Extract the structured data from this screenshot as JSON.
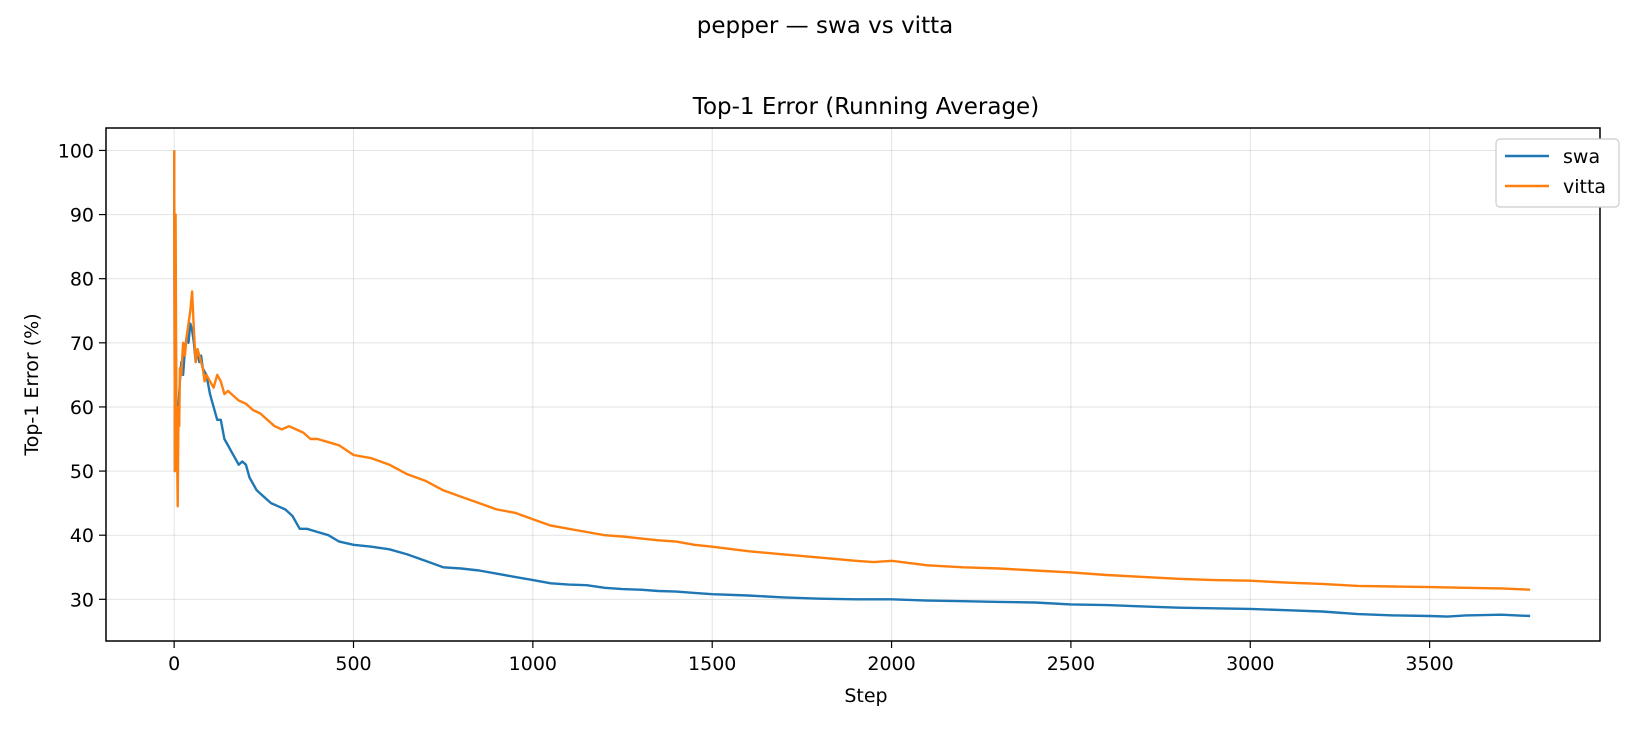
{
  "figure": {
    "suptitle": "pepper — swa vs vitta"
  },
  "chart_data": {
    "type": "line",
    "title": "Top-1 Error (Running Average)",
    "xlabel": "Step",
    "ylabel": "Top-1 Error (%)",
    "xlim": [
      -190,
      3975
    ],
    "ylim": [
      23.5,
      103.5
    ],
    "xticks": [
      0,
      500,
      1000,
      1500,
      2000,
      2500,
      3000,
      3500
    ],
    "yticks": [
      30,
      40,
      50,
      60,
      70,
      80,
      90,
      100
    ],
    "grid": true,
    "legend_position": "top-right",
    "series": [
      {
        "name": "swa",
        "color": "#1f77b4",
        "points": [
          [
            0,
            100
          ],
          [
            2,
            50
          ],
          [
            4,
            75
          ],
          [
            6,
            60
          ],
          [
            8,
            55
          ],
          [
            12,
            60
          ],
          [
            16,
            64
          ],
          [
            20,
            67
          ],
          [
            25,
            65
          ],
          [
            30,
            69
          ],
          [
            35,
            71
          ],
          [
            40,
            70
          ],
          [
            45,
            73
          ],
          [
            50,
            72
          ],
          [
            55,
            70
          ],
          [
            60,
            67
          ],
          [
            65,
            69
          ],
          [
            70,
            67
          ],
          [
            75,
            68
          ],
          [
            80,
            66
          ],
          [
            90,
            65
          ],
          [
            100,
            62
          ],
          [
            110,
            60
          ],
          [
            120,
            58
          ],
          [
            130,
            58
          ],
          [
            140,
            55
          ],
          [
            150,
            54
          ],
          [
            160,
            53
          ],
          [
            170,
            52
          ],
          [
            180,
            51
          ],
          [
            190,
            51.5
          ],
          [
            200,
            51
          ],
          [
            210,
            49
          ],
          [
            220,
            48
          ],
          [
            230,
            47
          ],
          [
            240,
            46.5
          ],
          [
            250,
            46
          ],
          [
            270,
            45
          ],
          [
            290,
            44.5
          ],
          [
            310,
            44
          ],
          [
            330,
            43
          ],
          [
            350,
            41
          ],
          [
            370,
            41
          ],
          [
            400,
            40.5
          ],
          [
            430,
            40
          ],
          [
            460,
            39
          ],
          [
            500,
            38.5
          ],
          [
            550,
            38.2
          ],
          [
            600,
            37.8
          ],
          [
            650,
            37
          ],
          [
            700,
            36
          ],
          [
            750,
            35
          ],
          [
            800,
            34.8
          ],
          [
            850,
            34.5
          ],
          [
            900,
            34
          ],
          [
            950,
            33.5
          ],
          [
            1000,
            33
          ],
          [
            1050,
            32.5
          ],
          [
            1100,
            32.3
          ],
          [
            1150,
            32.2
          ],
          [
            1200,
            31.8
          ],
          [
            1250,
            31.6
          ],
          [
            1300,
            31.5
          ],
          [
            1350,
            31.3
          ],
          [
            1400,
            31.2
          ],
          [
            1450,
            31
          ],
          [
            1500,
            30.8
          ],
          [
            1600,
            30.6
          ],
          [
            1700,
            30.3
          ],
          [
            1800,
            30.1
          ],
          [
            1900,
            30
          ],
          [
            2000,
            30
          ],
          [
            2100,
            29.8
          ],
          [
            2200,
            29.7
          ],
          [
            2300,
            29.6
          ],
          [
            2400,
            29.5
          ],
          [
            2500,
            29.2
          ],
          [
            2600,
            29.1
          ],
          [
            2700,
            28.9
          ],
          [
            2800,
            28.7
          ],
          [
            2900,
            28.6
          ],
          [
            3000,
            28.5
          ],
          [
            3100,
            28.3
          ],
          [
            3200,
            28.1
          ],
          [
            3300,
            27.7
          ],
          [
            3400,
            27.5
          ],
          [
            3500,
            27.4
          ],
          [
            3550,
            27.3
          ],
          [
            3600,
            27.5
          ],
          [
            3700,
            27.6
          ],
          [
            3780,
            27.4
          ]
        ]
      },
      {
        "name": "vitta",
        "color": "#ff7f0e",
        "points": [
          [
            0,
            100
          ],
          [
            2,
            50
          ],
          [
            4,
            90
          ],
          [
            6,
            60
          ],
          [
            8,
            55
          ],
          [
            10,
            44.5
          ],
          [
            12,
            60
          ],
          [
            14,
            57
          ],
          [
            16,
            66
          ],
          [
            20,
            65
          ],
          [
            25,
            70
          ],
          [
            30,
            68
          ],
          [
            35,
            71
          ],
          [
            40,
            73
          ],
          [
            45,
            75
          ],
          [
            50,
            78
          ],
          [
            55,
            72
          ],
          [
            60,
            67
          ],
          [
            65,
            69
          ],
          [
            70,
            68
          ],
          [
            75,
            67
          ],
          [
            80,
            66
          ],
          [
            85,
            64
          ],
          [
            90,
            65
          ],
          [
            100,
            64
          ],
          [
            110,
            63
          ],
          [
            120,
            65
          ],
          [
            130,
            64
          ],
          [
            140,
            62
          ],
          [
            150,
            62.5
          ],
          [
            160,
            62
          ],
          [
            180,
            61
          ],
          [
            200,
            60.5
          ],
          [
            220,
            59.5
          ],
          [
            240,
            59
          ],
          [
            260,
            58
          ],
          [
            280,
            57
          ],
          [
            300,
            56.5
          ],
          [
            320,
            57
          ],
          [
            340,
            56.5
          ],
          [
            360,
            56
          ],
          [
            380,
            55
          ],
          [
            400,
            55
          ],
          [
            430,
            54.5
          ],
          [
            460,
            54
          ],
          [
            500,
            52.5
          ],
          [
            550,
            52
          ],
          [
            600,
            51
          ],
          [
            650,
            49.5
          ],
          [
            700,
            48.5
          ],
          [
            750,
            47
          ],
          [
            800,
            46
          ],
          [
            850,
            45
          ],
          [
            900,
            44
          ],
          [
            950,
            43.5
          ],
          [
            1000,
            42.5
          ],
          [
            1050,
            41.5
          ],
          [
            1100,
            41
          ],
          [
            1150,
            40.5
          ],
          [
            1200,
            40
          ],
          [
            1250,
            39.8
          ],
          [
            1300,
            39.5
          ],
          [
            1350,
            39.2
          ],
          [
            1400,
            39
          ],
          [
            1450,
            38.5
          ],
          [
            1500,
            38.2
          ],
          [
            1600,
            37.5
          ],
          [
            1700,
            37
          ],
          [
            1800,
            36.5
          ],
          [
            1900,
            36
          ],
          [
            1950,
            35.8
          ],
          [
            2000,
            36
          ],
          [
            2100,
            35.3
          ],
          [
            2200,
            35
          ],
          [
            2300,
            34.8
          ],
          [
            2400,
            34.5
          ],
          [
            2500,
            34.2
          ],
          [
            2600,
            33.8
          ],
          [
            2700,
            33.5
          ],
          [
            2800,
            33.2
          ],
          [
            2900,
            33
          ],
          [
            3000,
            32.9
          ],
          [
            3100,
            32.6
          ],
          [
            3200,
            32.4
          ],
          [
            3300,
            32.1
          ],
          [
            3400,
            32
          ],
          [
            3500,
            31.9
          ],
          [
            3600,
            31.8
          ],
          [
            3700,
            31.7
          ],
          [
            3780,
            31.5
          ]
        ]
      }
    ]
  }
}
